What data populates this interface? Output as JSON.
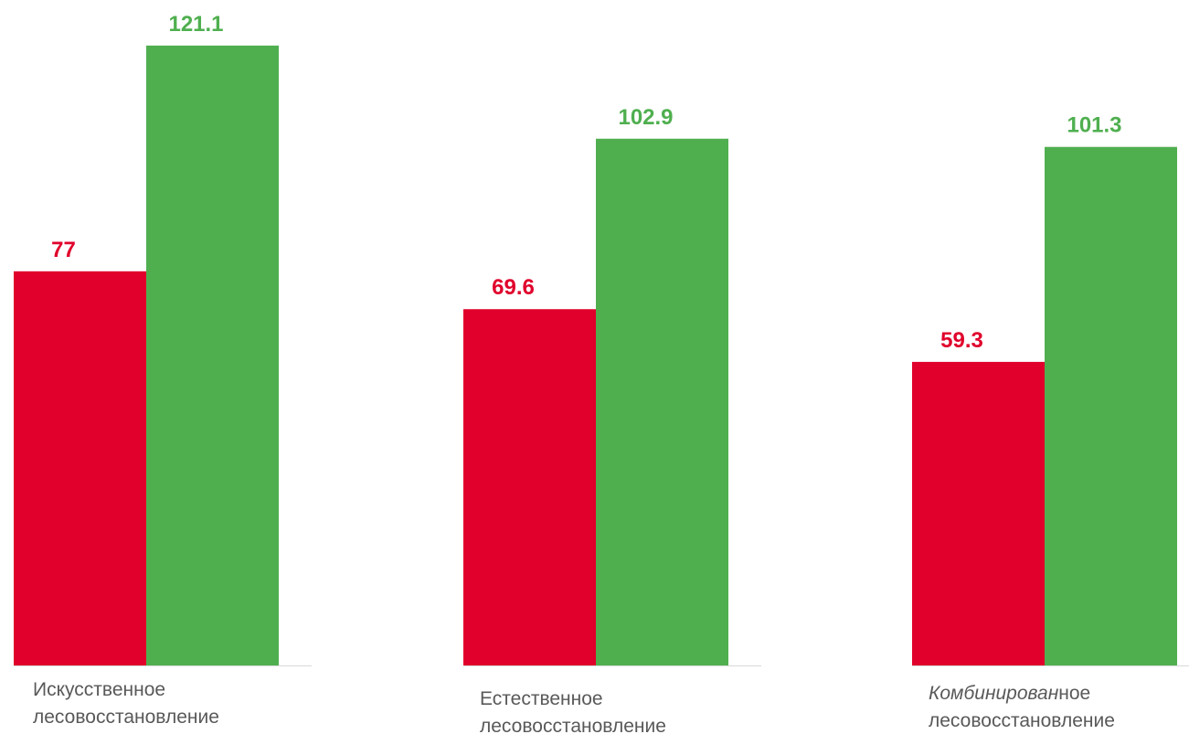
{
  "colors": {
    "series_a": "#E0002B",
    "series_b": "#4FAF4F",
    "axis": "#D9D9D9",
    "category_text": "#595959"
  },
  "chart_data": {
    "type": "bar",
    "title": "",
    "xlabel": "",
    "ylabel": "",
    "ylim": [
      0,
      130
    ],
    "grid": false,
    "legend": "none",
    "categories": [
      {
        "italic": "",
        "normal": "Искусственное",
        "line2": "лесовосстановление"
      },
      {
        "italic": "",
        "normal": "Естественное",
        "line2": "лесовосстановление"
      },
      {
        "italic": "Комбинирован",
        "normal": "ное",
        "line2": "лесовосстановление"
      }
    ],
    "series": [
      {
        "values": [
          77,
          69.6,
          59.3
        ],
        "labels": [
          "77",
          "69.6",
          "59.3"
        ],
        "color": "#E0002B"
      },
      {
        "values": [
          121.1,
          102.9,
          101.3
        ],
        "labels": [
          "121.1",
          "102.9",
          "101.3"
        ],
        "color": "#4FAF4F"
      }
    ]
  }
}
